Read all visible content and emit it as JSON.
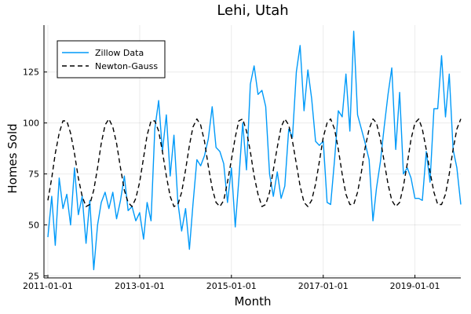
{
  "chart_data": {
    "type": "line",
    "title": "Lehi, Utah",
    "xlabel": "Month",
    "ylabel": "Homes Sold",
    "xlim": [
      "2010-12-01",
      "2020-01-01"
    ],
    "ylim": [
      24,
      148
    ],
    "x_ticks": [
      "2011-01-01",
      "2013-01-01",
      "2015-01-01",
      "2017-01-01",
      "2019-01-01"
    ],
    "y_ticks": [
      25,
      50,
      75,
      100,
      125
    ],
    "grid": true,
    "legend_position": "top-left",
    "series": [
      {
        "name": "Zillow Data",
        "color": "#009af9",
        "dash": "solid",
        "points": [
          [
            "2011-01-01",
            44
          ],
          [
            "2011-02-01",
            64
          ],
          [
            "2011-03-01",
            40
          ],
          [
            "2011-04-01",
            73
          ],
          [
            "2011-05-01",
            58
          ],
          [
            "2011-06-01",
            65
          ],
          [
            "2011-07-01",
            50
          ],
          [
            "2011-08-01",
            78
          ],
          [
            "2011-09-01",
            55
          ],
          [
            "2011-10-01",
            64
          ],
          [
            "2011-11-01",
            41
          ],
          [
            "2011-12-01",
            62
          ],
          [
            "2012-01-01",
            28
          ],
          [
            "2012-02-01",
            50
          ],
          [
            "2012-03-01",
            61
          ],
          [
            "2012-04-01",
            66
          ],
          [
            "2012-05-01",
            58
          ],
          [
            "2012-06-01",
            66
          ],
          [
            "2012-07-01",
            53
          ],
          [
            "2012-08-01",
            62
          ],
          [
            "2012-09-01",
            74
          ],
          [
            "2012-10-01",
            57
          ],
          [
            "2012-11-01",
            59
          ],
          [
            "2012-12-01",
            52
          ],
          [
            "2013-01-01",
            56
          ],
          [
            "2013-02-01",
            43
          ],
          [
            "2013-03-01",
            61
          ],
          [
            "2013-04-01",
            52
          ],
          [
            "2013-05-01",
            97
          ],
          [
            "2013-06-01",
            111
          ],
          [
            "2013-07-01",
            86
          ],
          [
            "2013-08-01",
            104
          ],
          [
            "2013-09-01",
            74
          ],
          [
            "2013-10-01",
            94
          ],
          [
            "2013-11-01",
            61
          ],
          [
            "2013-12-01",
            47
          ],
          [
            "2014-01-01",
            58
          ],
          [
            "2014-02-01",
            38
          ],
          [
            "2014-03-01",
            60
          ],
          [
            "2014-04-01",
            82
          ],
          [
            "2014-05-01",
            79
          ],
          [
            "2014-06-01",
            84
          ],
          [
            "2014-07-01",
            92
          ],
          [
            "2014-08-01",
            108
          ],
          [
            "2014-09-01",
            88
          ],
          [
            "2014-10-01",
            86
          ],
          [
            "2014-11-01",
            80
          ],
          [
            "2014-12-01",
            61
          ],
          [
            "2015-01-01",
            78
          ],
          [
            "2015-02-01",
            49
          ],
          [
            "2015-03-01",
            72
          ],
          [
            "2015-04-01",
            100
          ],
          [
            "2015-05-01",
            77
          ],
          [
            "2015-06-01",
            119
          ],
          [
            "2015-07-01",
            128
          ],
          [
            "2015-08-01",
            114
          ],
          [
            "2015-09-01",
            116
          ],
          [
            "2015-10-01",
            108
          ],
          [
            "2015-11-01",
            75
          ],
          [
            "2015-12-01",
            64
          ],
          [
            "2016-01-01",
            76
          ],
          [
            "2016-02-01",
            63
          ],
          [
            "2016-03-01",
            69
          ],
          [
            "2016-04-01",
            97
          ],
          [
            "2016-05-01",
            93
          ],
          [
            "2016-06-01",
            125
          ],
          [
            "2016-07-01",
            138
          ],
          [
            "2016-08-01",
            106
          ],
          [
            "2016-09-01",
            126
          ],
          [
            "2016-10-01",
            112
          ],
          [
            "2016-11-01",
            91
          ],
          [
            "2016-12-01",
            89
          ],
          [
            "2017-01-01",
            91
          ],
          [
            "2017-02-01",
            61
          ],
          [
            "2017-03-01",
            60
          ],
          [
            "2017-04-01",
            82
          ],
          [
            "2017-05-01",
            106
          ],
          [
            "2017-06-01",
            103
          ],
          [
            "2017-07-01",
            124
          ],
          [
            "2017-08-01",
            96
          ],
          [
            "2017-09-01",
            145
          ],
          [
            "2017-10-01",
            104
          ],
          [
            "2017-11-01",
            97
          ],
          [
            "2017-12-01",
            90
          ],
          [
            "2018-01-01",
            82
          ],
          [
            "2018-02-01",
            52
          ],
          [
            "2018-03-01",
            68
          ],
          [
            "2018-04-01",
            81
          ],
          [
            "2018-05-01",
            98
          ],
          [
            "2018-06-01",
            114
          ],
          [
            "2018-07-01",
            127
          ],
          [
            "2018-08-01",
            87
          ],
          [
            "2018-09-01",
            115
          ],
          [
            "2018-10-01",
            75
          ],
          [
            "2018-11-01",
            78
          ],
          [
            "2018-12-01",
            73
          ],
          [
            "2019-01-01",
            63
          ],
          [
            "2019-02-01",
            63
          ],
          [
            "2019-03-01",
            62
          ],
          [
            "2019-04-01",
            86
          ],
          [
            "2019-05-01",
            71
          ],
          [
            "2019-06-01",
            107
          ],
          [
            "2019-07-01",
            107
          ],
          [
            "2019-08-01",
            133
          ],
          [
            "2019-09-01",
            103
          ],
          [
            "2019-10-01",
            124
          ],
          [
            "2019-11-01",
            87
          ],
          [
            "2019-12-01",
            78
          ],
          [
            "2020-01-01",
            60
          ]
        ]
      },
      {
        "name": "Newton-Gauss",
        "color": "#000000",
        "dash": "dashed",
        "points": [
          [
            "2011-01-01",
            62
          ],
          [
            "2011-02-01",
            73
          ],
          [
            "2011-03-01",
            85
          ],
          [
            "2011-04-01",
            95
          ],
          [
            "2011-05-01",
            101
          ],
          [
            "2011-06-01",
            101
          ],
          [
            "2011-07-01",
            95
          ],
          [
            "2011-08-01",
            85
          ],
          [
            "2011-09-01",
            73
          ],
          [
            "2011-10-01",
            64
          ],
          [
            "2011-11-01",
            59
          ],
          [
            "2011-12-01",
            60
          ],
          [
            "2012-01-01",
            67
          ],
          [
            "2012-02-01",
            78
          ],
          [
            "2012-03-01",
            90
          ],
          [
            "2012-04-01",
            99
          ],
          [
            "2012-05-01",
            102
          ],
          [
            "2012-06-01",
            98
          ],
          [
            "2012-07-01",
            90
          ],
          [
            "2012-08-01",
            78
          ],
          [
            "2012-09-01",
            67
          ],
          [
            "2012-10-01",
            61
          ],
          [
            "2012-11-01",
            59
          ],
          [
            "2012-12-01",
            63
          ],
          [
            "2013-01-01",
            71
          ],
          [
            "2013-02-01",
            83
          ],
          [
            "2013-03-01",
            94
          ],
          [
            "2013-04-01",
            101
          ],
          [
            "2013-05-01",
            101
          ],
          [
            "2013-06-01",
            96
          ],
          [
            "2013-07-01",
            86
          ],
          [
            "2013-08-01",
            74
          ],
          [
            "2013-09-01",
            64
          ],
          [
            "2013-10-01",
            59
          ],
          [
            "2013-11-01",
            60
          ],
          [
            "2013-12-01",
            66
          ],
          [
            "2014-01-01",
            77
          ],
          [
            "2014-02-01",
            89
          ],
          [
            "2014-03-01",
            98
          ],
          [
            "2014-04-01",
            102
          ],
          [
            "2014-05-01",
            99
          ],
          [
            "2014-06-01",
            91
          ],
          [
            "2014-07-01",
            79
          ],
          [
            "2014-08-01",
            68
          ],
          [
            "2014-09-01",
            61
          ],
          [
            "2014-10-01",
            59
          ],
          [
            "2014-11-01",
            62
          ],
          [
            "2014-12-01",
            71
          ],
          [
            "2015-01-01",
            82
          ],
          [
            "2015-02-01",
            93
          ],
          [
            "2015-03-01",
            101
          ],
          [
            "2015-04-01",
            102
          ],
          [
            "2015-05-01",
            96
          ],
          [
            "2015-06-01",
            86
          ],
          [
            "2015-07-01",
            74
          ],
          [
            "2015-08-01",
            65
          ],
          [
            "2015-09-01",
            59
          ],
          [
            "2015-10-01",
            60
          ],
          [
            "2015-11-01",
            66
          ],
          [
            "2015-12-01",
            77
          ],
          [
            "2016-01-01",
            88
          ],
          [
            "2016-02-01",
            98
          ],
          [
            "2016-03-01",
            102
          ],
          [
            "2016-04-01",
            99
          ],
          [
            "2016-05-01",
            91
          ],
          [
            "2016-06-01",
            80
          ],
          [
            "2016-07-01",
            69
          ],
          [
            "2016-08-01",
            61
          ],
          [
            "2016-09-01",
            59
          ],
          [
            "2016-10-01",
            62
          ],
          [
            "2016-11-01",
            70
          ],
          [
            "2016-12-01",
            81
          ],
          [
            "2017-01-01",
            93
          ],
          [
            "2017-02-01",
            100
          ],
          [
            "2017-03-01",
            102
          ],
          [
            "2017-04-01",
            97
          ],
          [
            "2017-05-01",
            87
          ],
          [
            "2017-06-01",
            75
          ],
          [
            "2017-07-01",
            65
          ],
          [
            "2017-08-01",
            60
          ],
          [
            "2017-09-01",
            60
          ],
          [
            "2017-10-01",
            66
          ],
          [
            "2017-11-01",
            76
          ],
          [
            "2017-12-01",
            88
          ],
          [
            "2018-01-01",
            97
          ],
          [
            "2018-02-01",
            102
          ],
          [
            "2018-03-01",
            100
          ],
          [
            "2018-04-01",
            92
          ],
          [
            "2018-05-01",
            81
          ],
          [
            "2018-06-01",
            70
          ],
          [
            "2018-07-01",
            62
          ],
          [
            "2018-08-01",
            59
          ],
          [
            "2018-09-01",
            61
          ],
          [
            "2018-10-01",
            69
          ],
          [
            "2018-11-01",
            80
          ],
          [
            "2018-12-01",
            92
          ],
          [
            "2019-01-01",
            100
          ],
          [
            "2019-02-01",
            102
          ],
          [
            "2019-03-01",
            97
          ],
          [
            "2019-04-01",
            87
          ],
          [
            "2019-05-01",
            76
          ],
          [
            "2019-06-01",
            66
          ],
          [
            "2019-07-01",
            60
          ],
          [
            "2019-08-01",
            60
          ],
          [
            "2019-09-01",
            65
          ],
          [
            "2019-10-01",
            75
          ],
          [
            "2019-11-01",
            87
          ],
          [
            "2019-12-01",
            97
          ],
          [
            "2020-01-01",
            102
          ]
        ]
      }
    ]
  }
}
